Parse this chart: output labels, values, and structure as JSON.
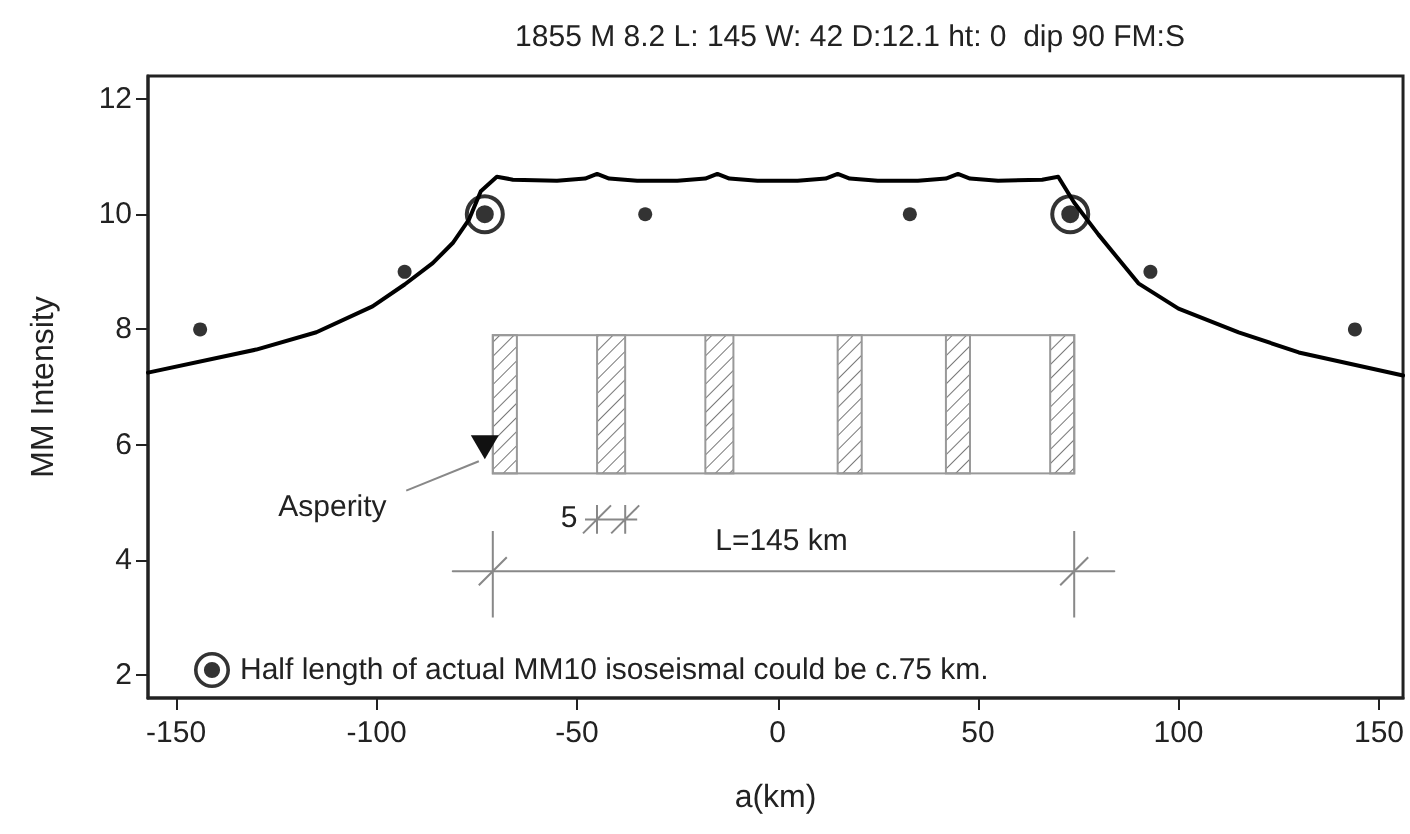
{
  "chart_data": {
    "type": "scatter",
    "title": "1855 M 8.2 L: 145 W: 42 D:12.1 ht: 0  dip 90 FM:S",
    "xlabel": "a(km)",
    "ylabel": "MM Intensity",
    "xlim": [
      -157,
      156
    ],
    "ylim": [
      1.6,
      12.4
    ],
    "xticks": [
      -150,
      -100,
      -50,
      0,
      50,
      100,
      150
    ],
    "yticks": [
      2,
      4,
      6,
      8,
      10,
      12
    ],
    "grid": false,
    "legend": "bottom left",
    "marker": "circle",
    "series": [
      {
        "type": "line",
        "marker": "none",
        "color": "#000000",
        "x": [
          -157,
          -130,
          -115,
          -101,
          -93,
          -86,
          -81,
          -77,
          -74,
          -70,
          -66,
          -55,
          -48,
          -45,
          -42,
          -35,
          -25,
          -18,
          -15,
          -12,
          -5,
          5,
          12,
          15,
          18,
          25,
          35,
          42,
          45,
          48,
          55,
          66,
          70,
          74,
          80,
          90,
          100,
          115,
          130,
          156
        ],
        "values": [
          7.25,
          7.65,
          7.95,
          8.4,
          8.78,
          9.15,
          9.5,
          9.9,
          10.4,
          10.65,
          10.6,
          10.58,
          10.62,
          10.7,
          10.62,
          10.58,
          10.58,
          10.62,
          10.7,
          10.62,
          10.58,
          10.58,
          10.62,
          10.7,
          10.62,
          10.58,
          10.58,
          10.62,
          10.7,
          10.62,
          10.58,
          10.6,
          10.65,
          10.2,
          9.65,
          8.8,
          8.36,
          7.95,
          7.6,
          7.2
        ]
      },
      {
        "color": "#000000",
        "x": [
          -144,
          -93,
          -33,
          33,
          93,
          144
        ],
        "values": [
          8,
          9,
          10,
          10,
          9,
          8
        ]
      },
      {
        "type": "line",
        "marker": "none",
        "color": "#888888",
        "x": [
          -81,
          84
        ],
        "values": [
          3.8,
          3.8
        ]
      },
      {
        "name": "Half length of actual MM10 isoseismal could be c.75 km.",
        "color": "#000000",
        "x": [
          -73,
          73
        ],
        "values": [
          10,
          10
        ]
      }
    ],
    "annotations": [
      "Asperity",
      "5",
      "L=145 km"
    ]
  }
}
